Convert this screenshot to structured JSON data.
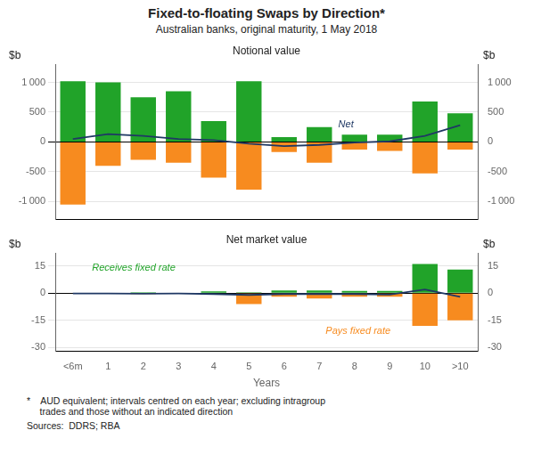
{
  "title": "Fixed-to-floating Swaps by Direction*",
  "subtitle": "Australian banks, original maturity, 1 May 2018",
  "footnotes": [
    "*    AUD equivalent; intervals centred on each year; excluding intragroup\n     trades and those without an indicated direction",
    "Sources:  DDRS; RBA"
  ],
  "chart_data": [
    {
      "type": "bar",
      "title": "Notional value",
      "ylabel": "$b",
      "y2label": "$b",
      "categories": [
        "<6m",
        "1",
        "2",
        "3",
        "4",
        "5",
        "6",
        "7",
        "8",
        "9",
        "10",
        ">10"
      ],
      "series": [
        {
          "color": "#21a329",
          "values": [
            1020,
            1000,
            750,
            850,
            350,
            1020,
            80,
            250,
            120,
            120,
            680,
            480
          ]
        },
        {
          "color": "#f78b1f",
          "values": [
            -1050,
            -400,
            -300,
            -350,
            -600,
            -800,
            -170,
            -350,
            -130,
            -150,
            -530,
            -130
          ]
        },
        {
          "type": "line",
          "color": "#1f3864",
          "values": [
            50,
            130,
            100,
            50,
            30,
            -30,
            -70,
            -50,
            -10,
            10,
            100,
            280
          ]
        }
      ],
      "ylim": [
        -1300,
        1300
      ],
      "yticks": [
        {
          "value": -1000,
          "label": "-1 000"
        },
        -500,
        0,
        500,
        {
          "value": 1000,
          "label": "1 000"
        }
      ],
      "y2lim": [
        -1300,
        1300
      ],
      "y2ticks": [
        {
          "value": -1000,
          "label": "-1 000"
        },
        -500,
        0,
        500,
        {
          "value": 1000,
          "label": "1 000"
        }
      ],
      "grid": true,
      "stacked": true,
      "tick_labels": "y",
      "annotations": [
        {
          "text": "Net",
          "color": "#1f3864"
        }
      ]
    },
    {
      "type": "bar",
      "title": "Net market value",
      "ylabel": "$b",
      "y2label": "$b",
      "xlabel": "Years",
      "categories": [
        "<6m",
        "1",
        "2",
        "3",
        "4",
        "5",
        "6",
        "7",
        "8",
        "9",
        "10",
        ">10"
      ],
      "series": [
        {
          "color": "#21a329",
          "values": [
            0.0,
            0.0,
            0.5,
            0.0,
            1.0,
            0.5,
            1.5,
            1.5,
            1.2,
            1.2,
            16,
            13
          ]
        },
        {
          "color": "#f78b1f",
          "values": [
            0.0,
            0.0,
            -0.5,
            0.0,
            0.0,
            -6.0,
            -2.0,
            -3.0,
            -2.0,
            -2.0,
            -18,
            -15
          ]
        },
        {
          "type": "line",
          "color": "#1f3864",
          "values": [
            -0.2,
            -0.2,
            -0.3,
            -0.2,
            -0.5,
            -1.0,
            -0.5,
            -0.5,
            -0.5,
            -0.8,
            2.0,
            -2.0
          ]
        }
      ],
      "ylim": [
        -32,
        22
      ],
      "yticks": [
        -30,
        -15,
        0,
        15
      ],
      "y2lim": [
        -32,
        22
      ],
      "y2ticks": [
        -30,
        -15,
        0,
        15
      ],
      "grid": true,
      "stacked": true,
      "annotations": [
        {
          "text": "Receives fixed rate",
          "color": "#21a329"
        },
        {
          "text": "Pays fixed rate",
          "color": "#f78b1f"
        }
      ]
    }
  ]
}
